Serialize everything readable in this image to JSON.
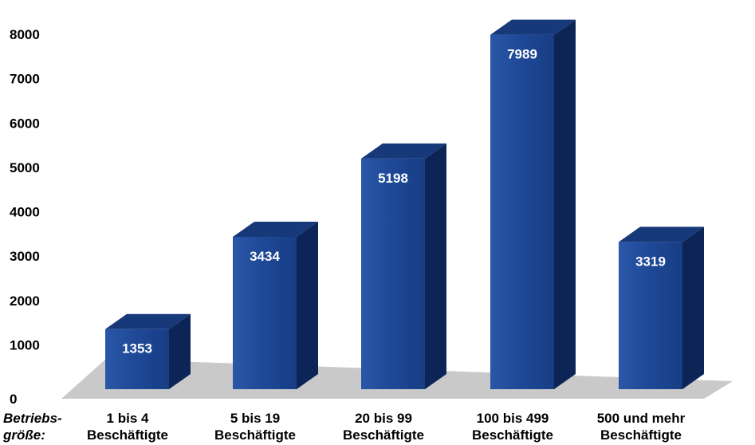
{
  "chart_data": {
    "type": "bar",
    "categories": [
      [
        "1 bis 4",
        "Beschäftigte"
      ],
      [
        "5 bis 19",
        "Beschäftigte"
      ],
      [
        "20 bis 99",
        "Beschäftigte"
      ],
      [
        "100 bis 499",
        "Beschäftigte"
      ],
      [
        "500 und mehr",
        "Beschäftigte"
      ]
    ],
    "values": [
      1353,
      3434,
      5198,
      7989,
      3319
    ],
    "data_labels": [
      "1353",
      "3434",
      "5198",
      "7989",
      "3319"
    ],
    "x_axis_title": [
      "Betriebs-",
      "größe:"
    ],
    "yticks": [
      0,
      1000,
      2000,
      3000,
      4000,
      5000,
      6000,
      7000,
      8000
    ],
    "ylim": [
      0,
      8000
    ],
    "grid": false,
    "bar_style": "3d",
    "colors": {
      "bar_front": "#1e4896",
      "bar_top": "#17397a",
      "bar_side": "#0d2456",
      "floor": "#c9c9c9",
      "label_text": "#ffffff"
    }
  }
}
